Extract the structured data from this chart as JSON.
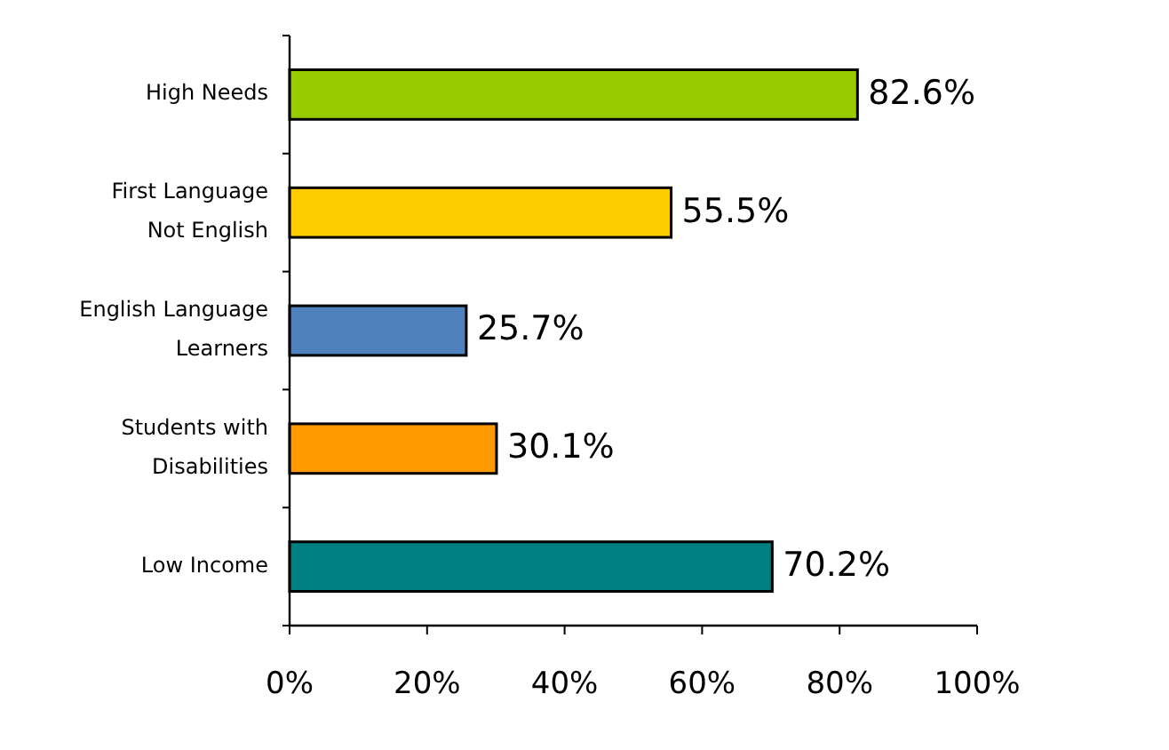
{
  "chart_data": {
    "type": "bar",
    "orientation": "horizontal",
    "categories": [
      "High Needs",
      "First Language Not English",
      "English Language Learners",
      "Students with Disabilities",
      "Low Income"
    ],
    "values": [
      82.6,
      55.5,
      25.7,
      30.1,
      70.2
    ],
    "colors": [
      "#99cc00",
      "#ffcc00",
      "#4f81bd",
      "#ff9900",
      "#008080"
    ],
    "value_labels": [
      "82.6%",
      "55.5%",
      "25.7%",
      "30.1%",
      "70.2%"
    ],
    "xlim": [
      0,
      100
    ],
    "xticks": [
      {
        "value": 0,
        "label": "0%"
      },
      {
        "value": 20,
        "label": "20%"
      },
      {
        "value": 40,
        "label": "40%"
      },
      {
        "value": 60,
        "label": "60%"
      },
      {
        "value": 80,
        "label": "80%"
      },
      {
        "value": 100,
        "label": "100%"
      }
    ],
    "grid": false
  }
}
